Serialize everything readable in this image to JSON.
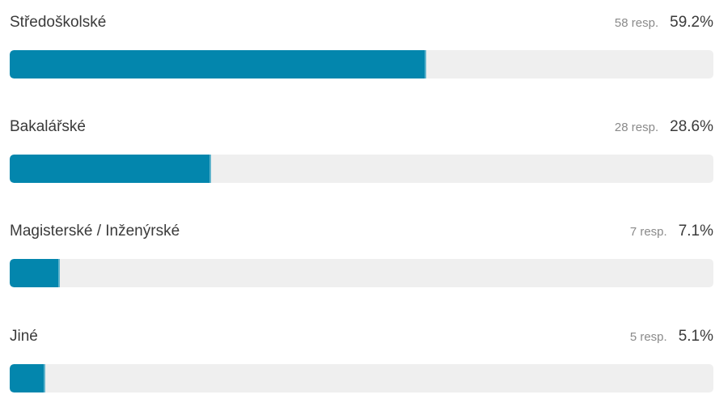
{
  "accent_color": "#0386ad",
  "track_color": "#efefef",
  "options": [
    {
      "label": "Středoškolské",
      "responses": "58 resp.",
      "percent_text": "59.2%",
      "percent": 59.2
    },
    {
      "label": "Bakalářské",
      "responses": "28 resp.",
      "percent_text": "28.6%",
      "percent": 28.6
    },
    {
      "label": "Magisterské / Inženýrské",
      "responses": "7 resp.",
      "percent_text": "7.1%",
      "percent": 7.1
    },
    {
      "label": "Jiné",
      "responses": "5 resp.",
      "percent_text": "5.1%",
      "percent": 5.1
    }
  ]
}
